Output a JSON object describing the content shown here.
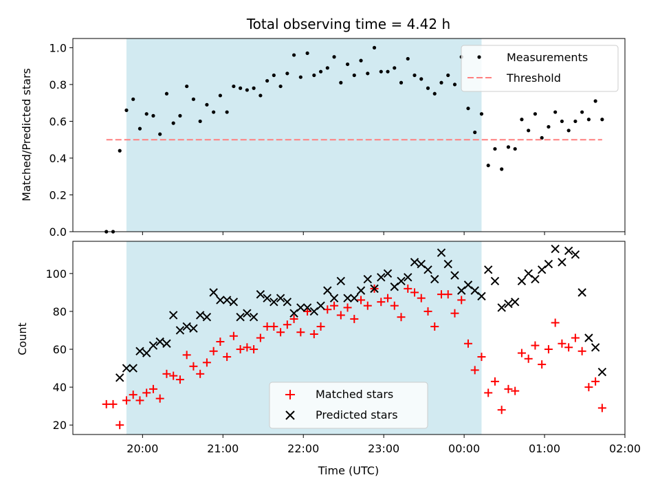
{
  "chart_data": [
    {
      "type": "scatter",
      "title": "Total observing time = 4.42 h",
      "ylabel": "Matched/Predicted stars",
      "ylim": [
        0,
        1.05
      ],
      "yticks": [
        0.0,
        0.2,
        0.4,
        0.6,
        0.8,
        1.0
      ],
      "ytick_labels": [
        "0.0",
        "0.2",
        "0.4",
        "0.6",
        "0.8",
        "1.0"
      ],
      "shaded_span": {
        "start": "19:48",
        "end": "00:13",
        "color": "#add8e6"
      },
      "legend": {
        "placement": "top-right",
        "entries": [
          {
            "label": "Measurements",
            "marker": "dot",
            "color": "#000000"
          },
          {
            "label": "Threshold",
            "marker": "dashed-line",
            "color": "#ff7f7f"
          }
        ]
      },
      "series": [
        {
          "name": "Measurements",
          "color": "#000000",
          "marker": "dot",
          "x": [
            "19:33",
            "19:38",
            "19:43",
            "19:48",
            "19:53",
            "19:58",
            "20:03",
            "20:08",
            "20:13",
            "20:18",
            "20:23",
            "20:28",
            "20:33",
            "20:38",
            "20:43",
            "20:48",
            "20:53",
            "20:58",
            "21:03",
            "21:08",
            "21:13",
            "21:18",
            "21:23",
            "21:28",
            "21:33",
            "21:38",
            "21:43",
            "21:48",
            "21:53",
            "21:58",
            "22:03",
            "22:08",
            "22:13",
            "22:18",
            "22:23",
            "22:28",
            "22:33",
            "22:38",
            "22:43",
            "22:48",
            "22:53",
            "22:58",
            "23:03",
            "23:08",
            "23:13",
            "23:18",
            "23:23",
            "23:28",
            "23:33",
            "23:38",
            "23:43",
            "23:48",
            "23:53",
            "23:58",
            "00:03",
            "00:08",
            "00:13",
            "00:18",
            "00:23",
            "00:28",
            "00:33",
            "00:38",
            "00:43",
            "00:48",
            "00:53",
            "00:58",
            "01:03",
            "01:08",
            "01:13",
            "01:18",
            "01:23",
            "01:28",
            "01:33",
            "01:38",
            "01:43"
          ],
          "y": [
            0.0,
            0.0,
            0.44,
            0.66,
            0.72,
            0.56,
            0.64,
            0.63,
            0.53,
            0.75,
            0.59,
            0.63,
            0.79,
            0.72,
            0.6,
            0.69,
            0.65,
            0.74,
            0.65,
            0.79,
            0.78,
            0.77,
            0.78,
            0.74,
            0.82,
            0.85,
            0.79,
            0.86,
            0.96,
            0.84,
            0.97,
            0.85,
            0.87,
            0.89,
            0.95,
            0.81,
            0.91,
            0.85,
            0.93,
            0.86,
            1.0,
            0.87,
            0.87,
            0.89,
            0.81,
            0.94,
            0.85,
            0.83,
            0.78,
            0.75,
            0.81,
            0.85,
            0.8,
            0.95,
            0.67,
            0.54,
            0.64,
            0.36,
            0.45,
            0.34,
            0.46,
            0.45,
            0.61,
            0.55,
            0.64,
            0.51,
            0.57,
            0.65,
            0.6,
            0.55,
            0.6,
            0.65,
            0.61,
            0.71,
            0.61
          ]
        },
        {
          "name": "Threshold",
          "color": "#ff7f7f",
          "style": "dashed",
          "x": [
            "19:33",
            "01:43"
          ],
          "y": [
            0.5,
            0.5
          ]
        }
      ]
    },
    {
      "type": "scatter",
      "xlabel": "Time (UTC)",
      "ylabel": "Count",
      "ylim": [
        15,
        117
      ],
      "yticks": [
        20,
        40,
        60,
        80,
        100
      ],
      "ytick_labels": [
        "20",
        "40",
        "60",
        "80",
        "100"
      ],
      "xticks": [
        "20:00",
        "21:00",
        "22:00",
        "23:00",
        "00:00",
        "01:00",
        "02:00"
      ],
      "xlim": [
        "19:08",
        "02:00"
      ],
      "shaded_span": {
        "start": "19:48",
        "end": "00:13",
        "color": "#add8e6"
      },
      "legend": {
        "placement": "lower-center",
        "entries": [
          {
            "label": "Matched stars",
            "marker": "plus",
            "color": "#ff0000"
          },
          {
            "label": "Predicted stars",
            "marker": "x",
            "color": "#000000"
          }
        ]
      },
      "series": [
        {
          "name": "Matched stars",
          "color": "#ff0000",
          "marker": "plus",
          "x": [
            "19:33",
            "19:38",
            "19:43",
            "19:48",
            "19:53",
            "19:58",
            "20:03",
            "20:08",
            "20:13",
            "20:18",
            "20:23",
            "20:28",
            "20:33",
            "20:38",
            "20:43",
            "20:48",
            "20:53",
            "20:58",
            "21:03",
            "21:08",
            "21:13",
            "21:18",
            "21:23",
            "21:28",
            "21:33",
            "21:38",
            "21:43",
            "21:48",
            "21:53",
            "21:58",
            "22:03",
            "22:08",
            "22:13",
            "22:18",
            "22:23",
            "22:28",
            "22:33",
            "22:38",
            "22:43",
            "22:48",
            "22:53",
            "22:58",
            "23:03",
            "23:08",
            "23:13",
            "23:18",
            "23:23",
            "23:28",
            "23:33",
            "23:38",
            "23:43",
            "23:48",
            "23:53",
            "23:58",
            "00:03",
            "00:08",
            "00:13",
            "00:18",
            "00:23",
            "00:28",
            "00:33",
            "00:38",
            "00:43",
            "00:48",
            "00:53",
            "00:58",
            "01:03",
            "01:08",
            "01:13",
            "01:18",
            "01:23",
            "01:28",
            "01:33",
            "01:38",
            "01:43"
          ],
          "y": [
            31,
            31,
            20,
            33,
            36,
            33,
            37,
            39,
            34,
            47,
            46,
            44,
            57,
            51,
            47,
            53,
            59,
            64,
            56,
            67,
            60,
            61,
            60,
            66,
            72,
            72,
            69,
            73,
            76,
            69,
            80,
            68,
            72,
            81,
            83,
            78,
            82,
            76,
            86,
            83,
            92,
            85,
            87,
            83,
            77,
            92,
            90,
            87,
            80,
            72,
            89,
            89,
            79,
            86,
            63,
            49,
            56,
            37,
            43,
            28,
            39,
            38,
            58,
            55,
            62,
            52,
            60,
            74,
            63,
            61,
            66,
            59,
            40,
            43,
            29
          ]
        },
        {
          "name": "Predicted stars",
          "color": "#000000",
          "marker": "x",
          "x": [
            "19:43",
            "19:48",
            "19:53",
            "19:58",
            "20:03",
            "20:08",
            "20:13",
            "20:18",
            "20:23",
            "20:28",
            "20:33",
            "20:38",
            "20:43",
            "20:48",
            "20:53",
            "20:58",
            "21:03",
            "21:08",
            "21:13",
            "21:18",
            "21:23",
            "21:28",
            "21:33",
            "21:38",
            "21:43",
            "21:48",
            "21:53",
            "21:58",
            "22:03",
            "22:08",
            "22:13",
            "22:18",
            "22:23",
            "22:28",
            "22:33",
            "22:38",
            "22:43",
            "22:48",
            "22:53",
            "22:58",
            "23:03",
            "23:08",
            "23:13",
            "23:18",
            "23:23",
            "23:28",
            "23:33",
            "23:38",
            "23:43",
            "23:48",
            "23:53",
            "23:58",
            "00:03",
            "00:08",
            "00:13",
            "00:18",
            "00:23",
            "00:28",
            "00:33",
            "00:38",
            "00:43",
            "00:48",
            "00:53",
            "00:58",
            "01:03",
            "01:08",
            "01:13",
            "01:18",
            "01:23",
            "01:28",
            "01:33",
            "01:38",
            "01:43"
          ],
          "y": [
            45,
            50,
            50,
            59,
            58,
            62,
            64,
            63,
            78,
            70,
            72,
            71,
            78,
            77,
            90,
            86,
            86,
            85,
            77,
            79,
            77,
            89,
            87,
            85,
            87,
            85,
            79,
            82,
            82,
            80,
            83,
            91,
            87,
            96,
            87,
            87,
            91,
            97,
            92,
            98,
            100,
            93,
            96,
            98,
            106,
            105,
            102,
            97,
            111,
            105,
            99,
            91,
            94,
            91,
            88,
            102,
            96,
            82,
            84,
            85,
            96,
            100,
            97,
            102,
            105,
            113,
            106,
            112,
            110,
            90,
            66,
            61,
            48
          ]
        }
      ]
    }
  ]
}
